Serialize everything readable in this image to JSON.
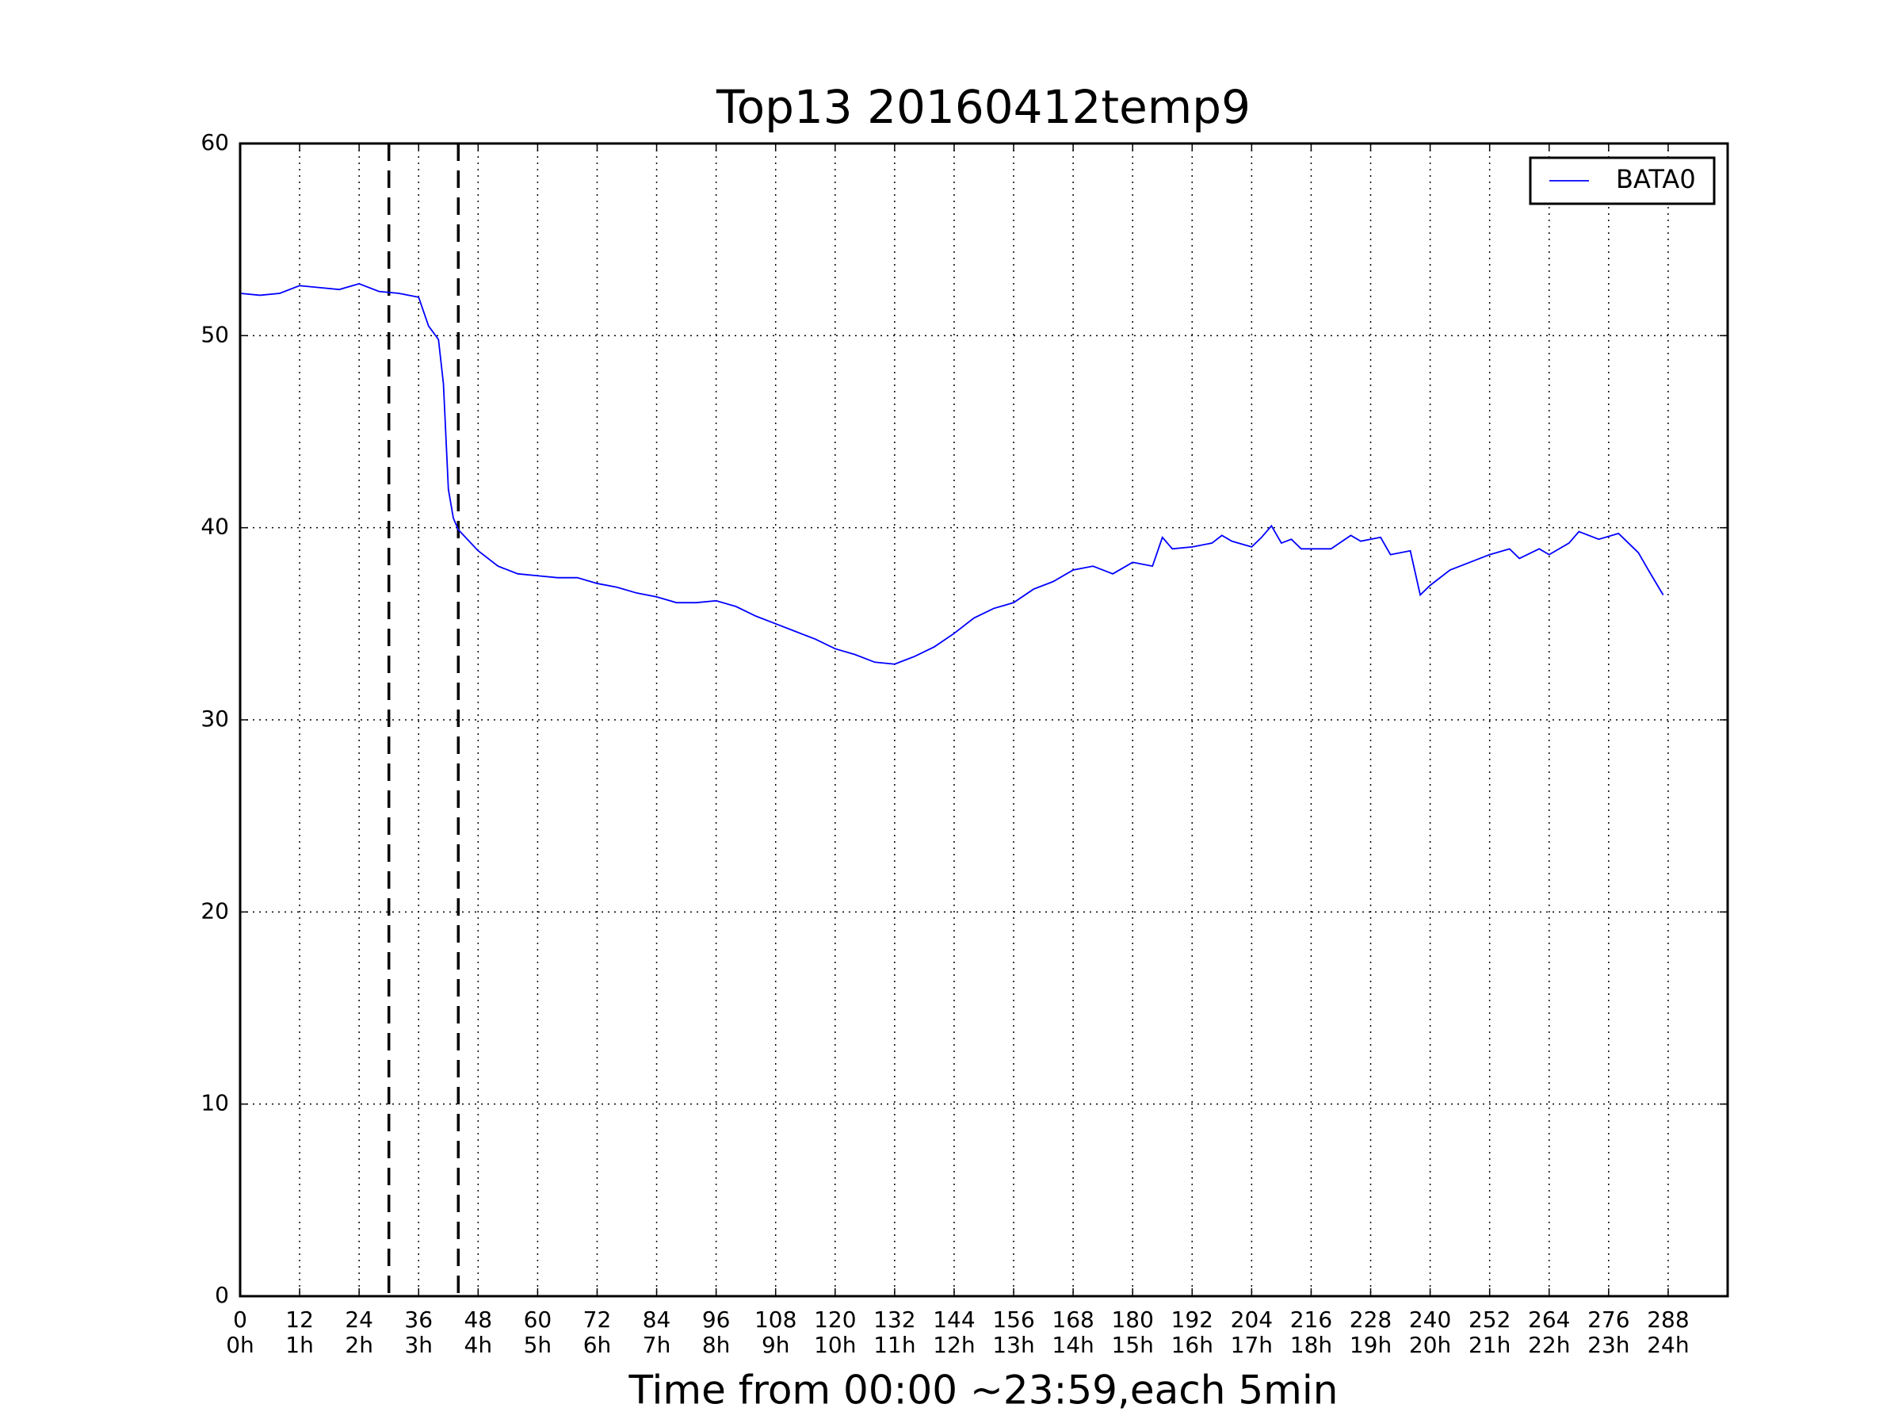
{
  "chart_data": {
    "type": "line",
    "title": "Top13 20160412temp9",
    "xlabel": "Time from 00:00 ~23:59,each 5min",
    "xlim": [
      0,
      300
    ],
    "ylim": [
      0,
      60
    ],
    "xticks": [
      0,
      12,
      24,
      36,
      48,
      60,
      72,
      84,
      96,
      108,
      120,
      132,
      144,
      156,
      168,
      180,
      192,
      204,
      216,
      228,
      240,
      252,
      264,
      276,
      288
    ],
    "xtick_sublabels": [
      "0h",
      "1h",
      "2h",
      "3h",
      "4h",
      "5h",
      "6h",
      "7h",
      "8h",
      "9h",
      "10h",
      "11h",
      "12h",
      "13h",
      "14h",
      "15h",
      "16h",
      "17h",
      "18h",
      "19h",
      "20h",
      "21h",
      "22h",
      "23h",
      "24h"
    ],
    "yticks": [
      0,
      10,
      20,
      30,
      40,
      50,
      60
    ],
    "grid": true,
    "vlines": [
      30,
      44
    ],
    "legend": "upper right",
    "x": [
      0,
      4,
      8,
      12,
      16,
      20,
      24,
      28,
      32,
      36,
      38,
      40,
      41,
      42,
      43,
      44,
      48,
      52,
      56,
      60,
      64,
      68,
      72,
      76,
      80,
      84,
      88,
      92,
      96,
      100,
      104,
      108,
      112,
      116,
      120,
      124,
      128,
      132,
      136,
      140,
      144,
      148,
      152,
      156,
      160,
      164,
      168,
      172,
      176,
      180,
      184,
      186,
      188,
      192,
      196,
      198,
      200,
      204,
      206,
      208,
      210,
      212,
      214,
      218,
      220,
      224,
      226,
      230,
      232,
      236,
      238,
      240,
      244,
      248,
      252,
      256,
      258,
      262,
      264,
      268,
      270,
      274,
      278,
      282,
      284,
      287
    ],
    "series": [
      {
        "name": "BATA0",
        "color": "#0000ff",
        "values": [
          52.2,
          52.1,
          52.2,
          52.6,
          52.5,
          52.4,
          52.7,
          52.3,
          52.2,
          52.0,
          50.5,
          49.8,
          47.5,
          42.0,
          40.5,
          39.9,
          38.8,
          38.0,
          37.6,
          37.5,
          37.4,
          37.4,
          37.1,
          36.9,
          36.6,
          36.4,
          36.1,
          36.1,
          36.2,
          35.9,
          35.4,
          35.0,
          34.6,
          34.2,
          33.7,
          33.4,
          33.0,
          32.9,
          33.3,
          33.8,
          34.5,
          35.3,
          35.8,
          36.1,
          36.8,
          37.2,
          37.8,
          38.0,
          37.6,
          38.2,
          38.0,
          39.5,
          38.9,
          39.0,
          39.2,
          39.6,
          39.3,
          39.0,
          39.5,
          40.1,
          39.2,
          39.4,
          38.9,
          38.9,
          38.9,
          39.6,
          39.3,
          39.5,
          38.6,
          38.8,
          36.5,
          37.0,
          37.8,
          38.2,
          38.6,
          38.9,
          38.4,
          38.9,
          38.6,
          39.2,
          39.8,
          39.4,
          39.7,
          38.7,
          37.8,
          36.5
        ]
      }
    ]
  }
}
